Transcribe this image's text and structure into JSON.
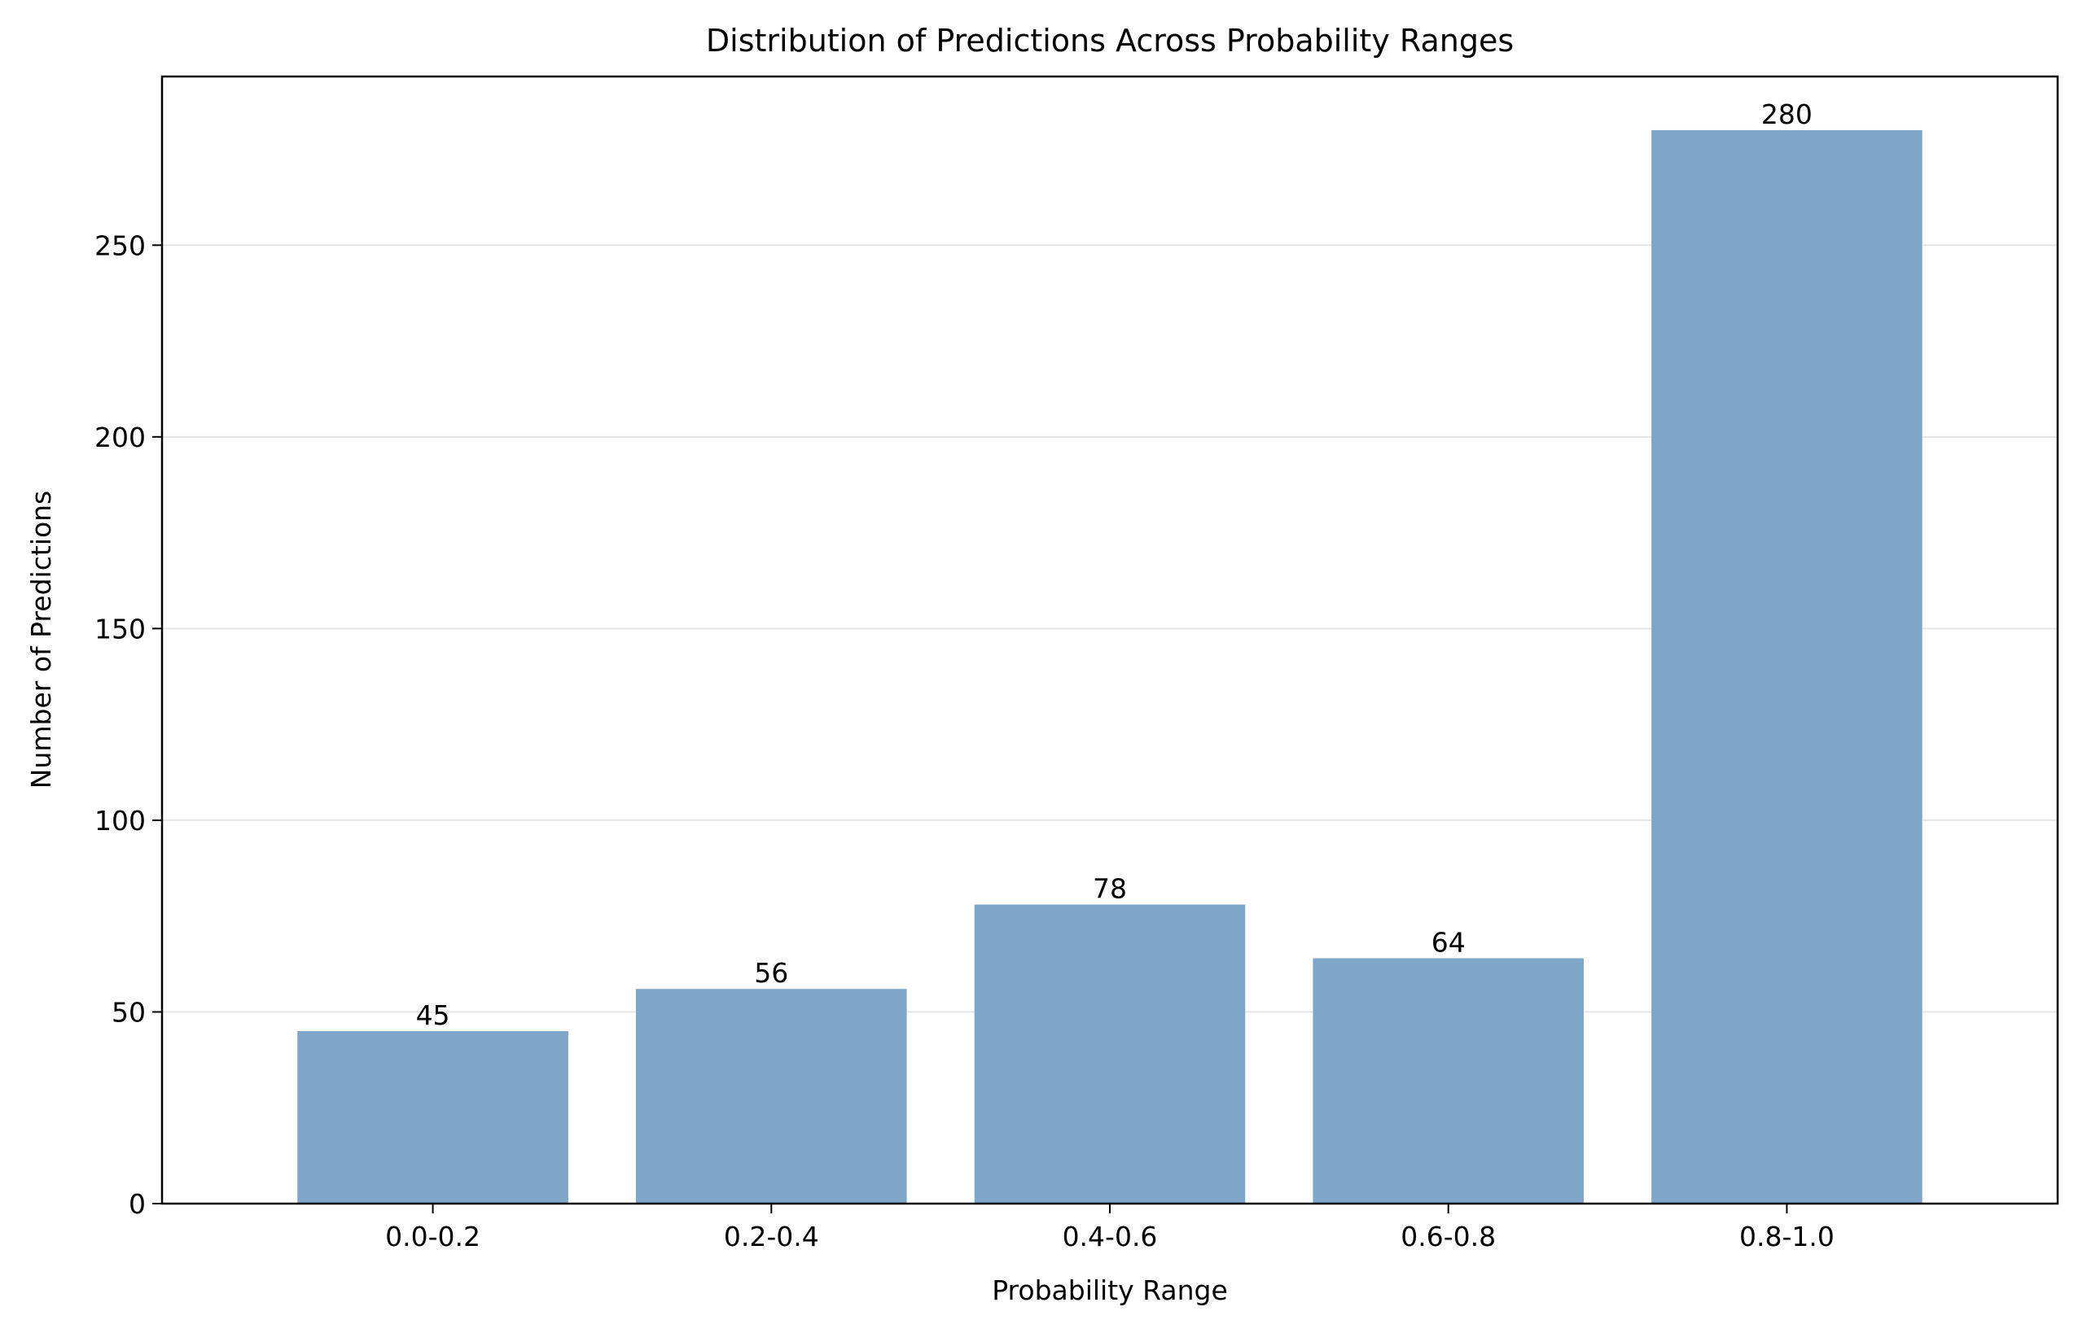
{
  "chart_data": {
    "type": "bar",
    "title": "Distribution of Predictions Across Probability Ranges",
    "xlabel": "Probability Range",
    "ylabel": "Number of Predictions",
    "categories": [
      "0.0-0.2",
      "0.2-0.4",
      "0.4-0.6",
      "0.6-0.8",
      "0.8-1.0"
    ],
    "values": [
      45,
      56,
      78,
      64,
      280
    ],
    "data_labels": [
      "45",
      "56",
      "78",
      "64",
      "280"
    ],
    "ylim": [
      0,
      294
    ],
    "yticks": [
      0,
      50,
      100,
      150,
      200,
      250
    ],
    "ytick_labels": [
      "0",
      "50",
      "100",
      "150",
      "200",
      "250"
    ],
    "grid": "y",
    "bar_color": "#7ea6c9"
  }
}
